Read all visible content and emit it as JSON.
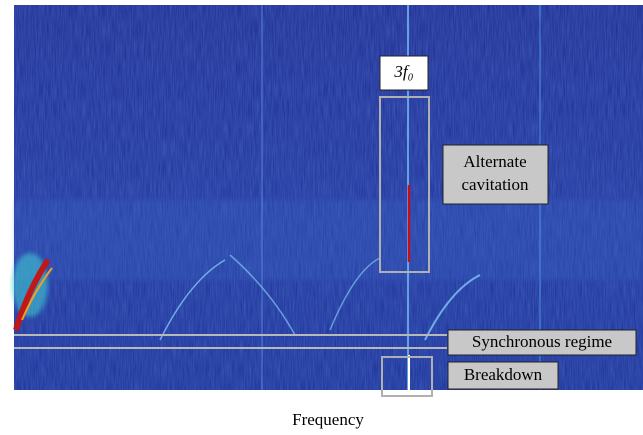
{
  "annotations": {
    "harmonic": "3f₀",
    "alternate_cavitation": [
      "Alternate",
      "cavitation"
    ],
    "synchronous_regime": "Synchronous regime",
    "breakdown": "Breakdown"
  },
  "x_axis_label": "Frequency"
}
